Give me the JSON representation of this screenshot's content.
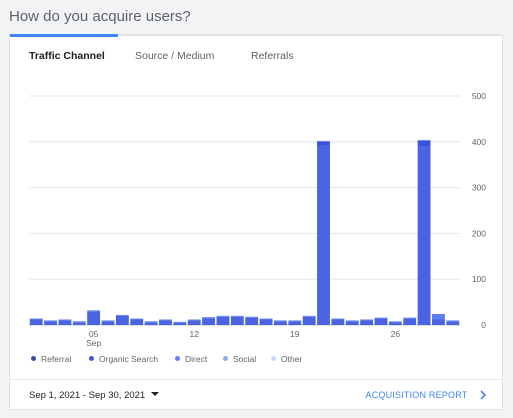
{
  "header": {
    "title": "How do you acquire users?"
  },
  "tabs": [
    {
      "label": "Traffic Channel",
      "active": true
    },
    {
      "label": "Source / Medium",
      "active": false
    },
    {
      "label": "Referrals",
      "active": false
    }
  ],
  "colors": {
    "accent": "#4285f4",
    "bar_top": "#3b51de",
    "bar_bottom": "#4a63e0"
  },
  "legend": [
    {
      "label": "Referral",
      "color": "#3c4ba8"
    },
    {
      "label": "Organic Search",
      "color": "#3b56d9"
    },
    {
      "label": "Direct",
      "color": "#5b7ff0"
    },
    {
      "label": "Social",
      "color": "#8eaaf2"
    },
    {
      "label": "Other",
      "color": "#c5d7f8"
    }
  ],
  "chart_data": {
    "type": "bar",
    "stacked": true,
    "x": [
      1,
      2,
      3,
      4,
      5,
      6,
      7,
      8,
      9,
      10,
      11,
      12,
      13,
      14,
      15,
      16,
      17,
      18,
      19,
      20,
      21,
      22,
      23,
      24,
      25,
      26,
      27,
      28,
      29,
      30
    ],
    "x_tick_labels": [
      {
        "day": 5,
        "label": "05",
        "sub": "Sep"
      },
      {
        "day": 12,
        "label": "12",
        "sub": ""
      },
      {
        "day": 19,
        "label": "19",
        "sub": ""
      },
      {
        "day": 26,
        "label": "26",
        "sub": ""
      }
    ],
    "y_ticks": [
      0,
      100,
      200,
      300,
      400,
      500
    ],
    "ylim": [
      0,
      500
    ],
    "y_axis_side": "right",
    "grid": true,
    "series": [
      {
        "name": "Organic Search",
        "values": [
          12,
          8,
          10,
          6,
          30,
          8,
          20,
          12,
          6,
          10,
          5,
          10,
          15,
          18,
          18,
          16,
          12,
          8,
          8,
          18,
          392,
          12,
          8,
          10,
          14,
          6,
          14,
          390,
          12,
          8
        ]
      },
      {
        "name": "Referral",
        "values": [
          0,
          0,
          0,
          0,
          0,
          0,
          0,
          0,
          0,
          0,
          0,
          0,
          0,
          0,
          0,
          0,
          0,
          0,
          0,
          0,
          8,
          0,
          0,
          0,
          0,
          0,
          0,
          12,
          0,
          0
        ]
      },
      {
        "name": "Direct",
        "values": [
          2,
          2,
          2,
          2,
          2,
          2,
          2,
          2,
          2,
          2,
          2,
          2,
          2,
          2,
          2,
          2,
          2,
          2,
          2,
          2,
          2,
          2,
          2,
          2,
          2,
          2,
          2,
          2,
          12,
          2
        ]
      }
    ]
  },
  "footer": {
    "date_range": "Sep 1, 2021 - Sep 30, 2021",
    "report_link": "ACQUISITION REPORT"
  }
}
